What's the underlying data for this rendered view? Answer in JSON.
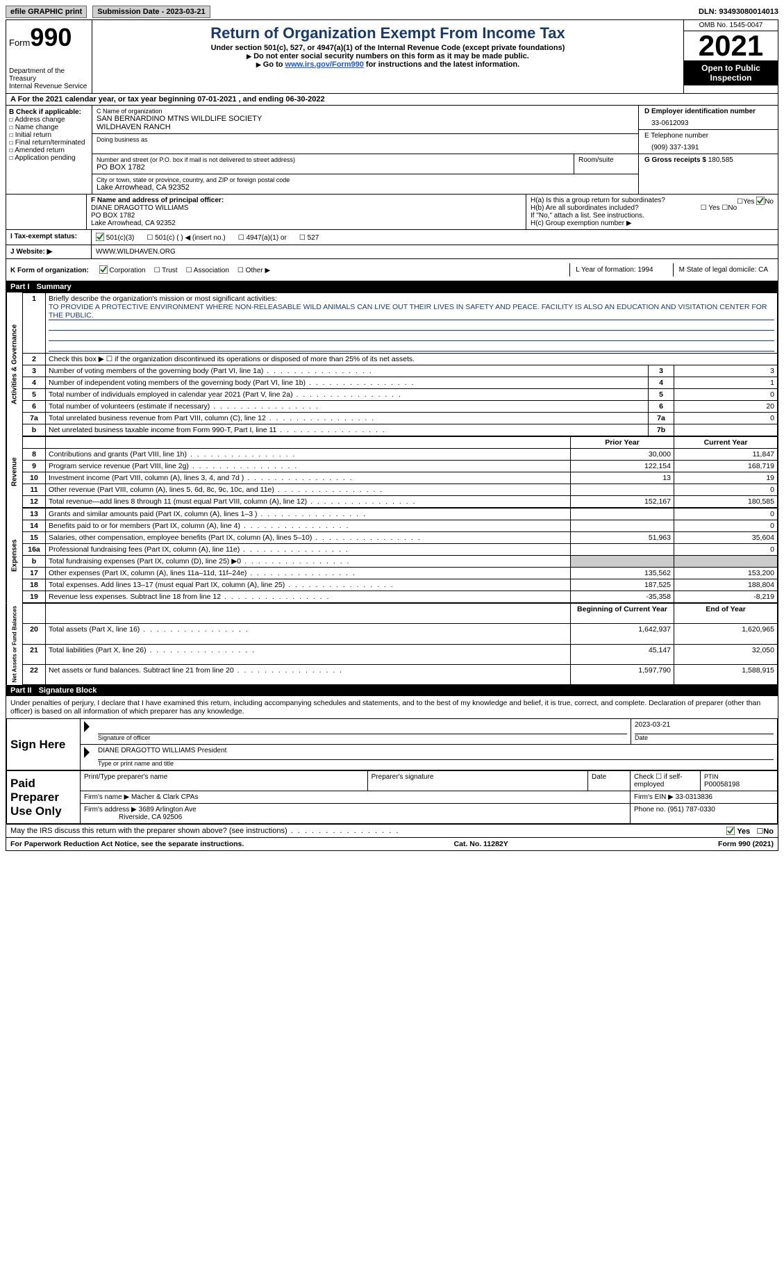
{
  "topbar": {
    "efile": "efile GRAPHIC print",
    "submission": "Submission Date - 2023-03-21",
    "dln": "DLN: 93493080014013"
  },
  "header": {
    "form_word": "Form",
    "form_num": "990",
    "title": "Return of Organization Exempt From Income Tax",
    "subtitle": "Under section 501(c), 527, or 4947(a)(1) of the Internal Revenue Code (except private foundations)",
    "note1": "Do not enter social security numbers on this form as it may be made public.",
    "note2_pre": "Go to ",
    "note2_link": "www.irs.gov/Form990",
    "note2_post": " for instructions and the latest information.",
    "dept": "Department of the Treasury\nInternal Revenue Service",
    "omb": "OMB No. 1545-0047",
    "year": "2021",
    "open": "Open to Public Inspection"
  },
  "line_a": "A For the 2021 calendar year, or tax year beginning 07-01-2021   , and ending 06-30-2022",
  "col_b": {
    "header": "B Check if applicable:",
    "opts": [
      "Address change",
      "Name change",
      "Initial return",
      "Final return/terminated",
      "Amended return",
      "Application pending"
    ]
  },
  "col_c": {
    "name_label": "C Name of organization",
    "name1": "SAN BERNARDINO MTNS WILDLIFE SOCIETY",
    "name2": "WILDHAVEN RANCH",
    "dba": "Doing business as",
    "street_label": "Number and street (or P.O. box if mail is not delivered to street address)",
    "street": "PO BOX 1782",
    "room": "Room/suite",
    "city_label": "City or town, state or province, country, and ZIP or foreign postal code",
    "city": "Lake Arrowhead, CA  92352"
  },
  "col_d": {
    "d_label": "D Employer identification number",
    "ein": "33-0612093",
    "e_label": "E Telephone number",
    "phone": "(909) 337-1391",
    "g_label": "G Gross receipts $ ",
    "gross": "180,585"
  },
  "section_f": {
    "f_label": "F Name and address of principal officer:",
    "name": "DIANE DRAGOTTO WILLIAMS",
    "addr1": "PO BOX 1782",
    "addr2": "Lake Arrowhead, CA  92352",
    "ha": "H(a)  Is this a group return for subordinates?",
    "ha_no": "No",
    "hb": "H(b)  Are all subordinates included?",
    "hb_note": "If \"No,\" attach a list. See instructions.",
    "hc": "H(c)  Group exemption number ▶"
  },
  "status": {
    "label": "I  Tax-exempt status:",
    "opts": [
      "501(c)(3)",
      "501(c) (  ) ◀ (insert no.)",
      "4947(a)(1) or",
      "527"
    ]
  },
  "website": {
    "label": "J  Website: ▶",
    "url": "WWW.WILDHAVEN.ORG"
  },
  "k_row": {
    "k": "K Form of organization:",
    "opts": [
      "Corporation",
      "Trust",
      "Association",
      "Other ▶"
    ],
    "l": "L Year of formation: 1994",
    "m": "M State of legal domicile: CA"
  },
  "parts": {
    "p1": "Part I",
    "p1t": "Summary",
    "p2": "Part II",
    "p2t": "Signature Block"
  },
  "side_labels": {
    "ag": "Activities & Governance",
    "rev": "Revenue",
    "exp": "Expenses",
    "net": "Net Assets or Fund Balances"
  },
  "summary": {
    "l1_label": "Briefly describe the organization's mission or most significant activities:",
    "l1_text": "TO PROVIDE A PROTECTIVE ENVIRONMENT WHERE NON-RELEASABLE WILD ANIMALS CAN LIVE OUT THEIR LIVES IN SAFETY AND PEACE. FACILITY IS ALSO AN EDUCATION AND VISITATION CENTER FOR THE PUBLIC.",
    "l2": "Check this box ▶ ☐ if the organization discontinued its operations or disposed of more than 25% of its net assets.",
    "rows_ag": [
      {
        "n": "3",
        "desc": "Number of voting members of the governing body (Part VI, line 1a)",
        "box": "3",
        "val": "3"
      },
      {
        "n": "4",
        "desc": "Number of independent voting members of the governing body (Part VI, line 1b)",
        "box": "4",
        "val": "1"
      },
      {
        "n": "5",
        "desc": "Total number of individuals employed in calendar year 2021 (Part V, line 2a)",
        "box": "5",
        "val": "0"
      },
      {
        "n": "6",
        "desc": "Total number of volunteers (estimate if necessary)",
        "box": "6",
        "val": "20"
      },
      {
        "n": "7a",
        "desc": "Total unrelated business revenue from Part VIII, column (C), line 12",
        "box": "7a",
        "val": "0"
      },
      {
        "n": "b",
        "desc": "Net unrelated business taxable income from Form 990-T, Part I, line 11",
        "box": "7b",
        "val": ""
      }
    ],
    "prior_hdr": "Prior Year",
    "current_hdr": "Current Year",
    "rows_rev": [
      {
        "n": "8",
        "desc": "Contributions and grants (Part VIII, line 1h)",
        "prior": "30,000",
        "curr": "11,847"
      },
      {
        "n": "9",
        "desc": "Program service revenue (Part VIII, line 2g)",
        "prior": "122,154",
        "curr": "168,719"
      },
      {
        "n": "10",
        "desc": "Investment income (Part VIII, column (A), lines 3, 4, and 7d )",
        "prior": "13",
        "curr": "19"
      },
      {
        "n": "11",
        "desc": "Other revenue (Part VIII, column (A), lines 5, 6d, 8c, 9c, 10c, and 11e)",
        "prior": "",
        "curr": "0"
      },
      {
        "n": "12",
        "desc": "Total revenue—add lines 8 through 11 (must equal Part VIII, column (A), line 12)",
        "prior": "152,167",
        "curr": "180,585"
      }
    ],
    "rows_exp": [
      {
        "n": "13",
        "desc": "Grants and similar amounts paid (Part IX, column (A), lines 1–3 )",
        "prior": "",
        "curr": "0"
      },
      {
        "n": "14",
        "desc": "Benefits paid to or for members (Part IX, column (A), line 4)",
        "prior": "",
        "curr": "0"
      },
      {
        "n": "15",
        "desc": "Salaries, other compensation, employee benefits (Part IX, column (A), lines 5–10)",
        "prior": "51,963",
        "curr": "35,604"
      },
      {
        "n": "16a",
        "desc": "Professional fundraising fees (Part IX, column (A), line 11e)",
        "prior": "",
        "curr": "0"
      },
      {
        "n": "b",
        "desc": "Total fundraising expenses (Part IX, column (D), line 25) ▶0",
        "prior": "shade",
        "curr": "shade"
      },
      {
        "n": "17",
        "desc": "Other expenses (Part IX, column (A), lines 11a–11d, 11f–24e)",
        "prior": "135,562",
        "curr": "153,200"
      },
      {
        "n": "18",
        "desc": "Total expenses. Add lines 13–17 (must equal Part IX, column (A), line 25)",
        "prior": "187,525",
        "curr": "188,804"
      },
      {
        "n": "19",
        "desc": "Revenue less expenses. Subtract line 18 from line 12",
        "prior": "-35,358",
        "curr": "-8,219"
      }
    ],
    "begin_hdr": "Beginning of Current Year",
    "end_hdr": "End of Year",
    "rows_net": [
      {
        "n": "20",
        "desc": "Total assets (Part X, line 16)",
        "prior": "1,642,937",
        "curr": "1,620,965"
      },
      {
        "n": "21",
        "desc": "Total liabilities (Part X, line 26)",
        "prior": "45,147",
        "curr": "32,050"
      },
      {
        "n": "22",
        "desc": "Net assets or fund balances. Subtract line 21 from line 20",
        "prior": "1,597,790",
        "curr": "1,588,915"
      }
    ]
  },
  "sig": {
    "intro": "Under penalties of perjury, I declare that I have examined this return, including accompanying schedules and statements, and to the best of my knowledge and belief, it is true, correct, and complete. Declaration of preparer (other than officer) is based on all information of which preparer has any knowledge.",
    "sign_here": "Sign Here",
    "sig_officer": "Signature of officer",
    "date": "2023-03-21",
    "date_lbl": "Date",
    "officer_name": "DIANE DRAGOTTO WILLIAMS  President",
    "type_name": "Type or print name and title"
  },
  "prep": {
    "label": "Paid Preparer Use Only",
    "c1": "Print/Type preparer's name",
    "c2": "Preparer's signature",
    "c3": "Date",
    "c4": "Check ☐ if self-employed",
    "c5l": "PTIN",
    "c5": "P00058198",
    "firm_l": "Firm's name     ▶",
    "firm": "Macher & Clark CPAs",
    "ein_l": "Firm's EIN ▶",
    "ein": "33-0313836",
    "addr_l": "Firm's address ▶",
    "addr1": "3689 Arlington Ave",
    "addr2": "Riverside, CA  92506",
    "phone_l": "Phone no.",
    "phone": "(951) 787-0330"
  },
  "discuss": {
    "q": "May the IRS discuss this return with the preparer shown above? (see instructions)",
    "yes": "Yes",
    "no": "No"
  },
  "footer": {
    "left": "For Paperwork Reduction Act Notice, see the separate instructions.",
    "mid": "Cat. No. 11282Y",
    "right": "Form 990 (2021)"
  }
}
